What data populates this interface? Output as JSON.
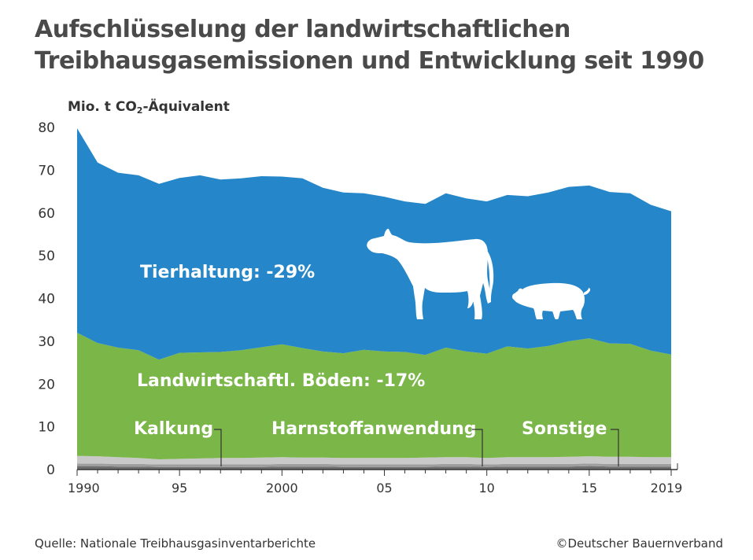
{
  "title_line1": "Aufschlüsselung der landwirtschaftlichen",
  "title_line2": "Treibhausgasemissionen und Entwicklung seit 1990",
  "unit_prefix": "Mio. t CO",
  "unit_sub": "2",
  "unit_suffix": "-Äquivalent",
  "source": "Quelle: Nationale Treibhausgasinventarberichte",
  "copyright": "©Deutscher Bauernverband",
  "colors": {
    "tierhaltung": "#2587c9",
    "boeden": "#7ab648",
    "sonstige": "#c9c9c9",
    "harnstoff": "#9e9e9e",
    "kalkung": "#6f6f6f"
  },
  "chart_data": {
    "type": "area",
    "stacked": true,
    "x": [
      1990,
      1991,
      1992,
      1993,
      1994,
      1995,
      1996,
      1997,
      1998,
      1999,
      2000,
      2001,
      2002,
      2003,
      2004,
      2005,
      2006,
      2007,
      2008,
      2009,
      2010,
      2011,
      2012,
      2013,
      2014,
      2015,
      2016,
      2017,
      2018,
      2019
    ],
    "x_tick_values": [
      1990,
      1995,
      2000,
      2005,
      2010,
      2015,
      2019
    ],
    "x_tick_labels": [
      "1990",
      "95",
      "2000",
      "05",
      "10",
      "15",
      "2019"
    ],
    "y_ticks": [
      0,
      10,
      20,
      30,
      40,
      50,
      60,
      70,
      80
    ],
    "ylim": [
      0,
      80
    ],
    "ylabel": "Mio. t CO2-Äquivalent",
    "series": [
      {
        "name": "Kalkung",
        "key": "kalkung",
        "values": [
          0.8,
          0.8,
          0.7,
          0.7,
          0.6,
          0.6,
          0.6,
          0.6,
          0.6,
          0.6,
          0.7,
          0.7,
          0.7,
          0.6,
          0.6,
          0.6,
          0.6,
          0.6,
          0.7,
          0.7,
          0.6,
          0.7,
          0.7,
          0.7,
          0.7,
          0.8,
          0.7,
          0.7,
          0.7,
          0.7
        ]
      },
      {
        "name": "Harnstoffanwendung",
        "key": "harnstoff",
        "values": [
          0.6,
          0.6,
          0.6,
          0.6,
          0.6,
          0.6,
          0.6,
          0.6,
          0.6,
          0.6,
          0.6,
          0.6,
          0.6,
          0.6,
          0.6,
          0.6,
          0.6,
          0.6,
          0.6,
          0.6,
          0.6,
          0.6,
          0.6,
          0.6,
          0.6,
          0.6,
          0.6,
          0.6,
          0.6,
          0.6
        ]
      },
      {
        "name": "Sonstige",
        "key": "sonstige",
        "values": [
          1.8,
          1.7,
          1.6,
          1.4,
          1.2,
          1.3,
          1.4,
          1.5,
          1.5,
          1.6,
          1.6,
          1.5,
          1.5,
          1.5,
          1.5,
          1.5,
          1.5,
          1.6,
          1.6,
          1.6,
          1.5,
          1.6,
          1.6,
          1.6,
          1.7,
          1.7,
          1.7,
          1.7,
          1.6,
          1.6
        ]
      },
      {
        "name": "Landwirtschaftl. Böden: -17%",
        "key": "boeden",
        "values": [
          28.8,
          26.5,
          25.6,
          25.2,
          23.3,
          24.8,
          24.8,
          24.8,
          25.2,
          25.8,
          26.4,
          25.6,
          24.8,
          24.5,
          25.3,
          24.9,
          24.8,
          24.0,
          25.6,
          24.7,
          24.4,
          25.9,
          25.4,
          26.0,
          27.0,
          27.6,
          26.5,
          26.4,
          24.9,
          24.0
        ]
      },
      {
        "name": "Tierhaltung: -29%",
        "key": "tierhaltung",
        "values": [
          47.8,
          42.2,
          40.9,
          40.9,
          41.1,
          40.9,
          41.4,
          40.3,
          40.2,
          40.0,
          39.2,
          39.7,
          38.3,
          37.6,
          36.6,
          36.2,
          35.2,
          35.3,
          36.1,
          35.8,
          35.6,
          35.4,
          35.6,
          35.9,
          36.1,
          35.7,
          35.4,
          35.2,
          34.1,
          33.5
        ]
      }
    ],
    "labels": {
      "tierhaltung": "Tierhaltung: -29%",
      "boeden": "Landwirtschaftl. Böden: -17%",
      "kalkung": "Kalkung",
      "harnstoff": "Harnstoffanwendung",
      "sonstige": "Sonstige"
    },
    "grid": false
  }
}
